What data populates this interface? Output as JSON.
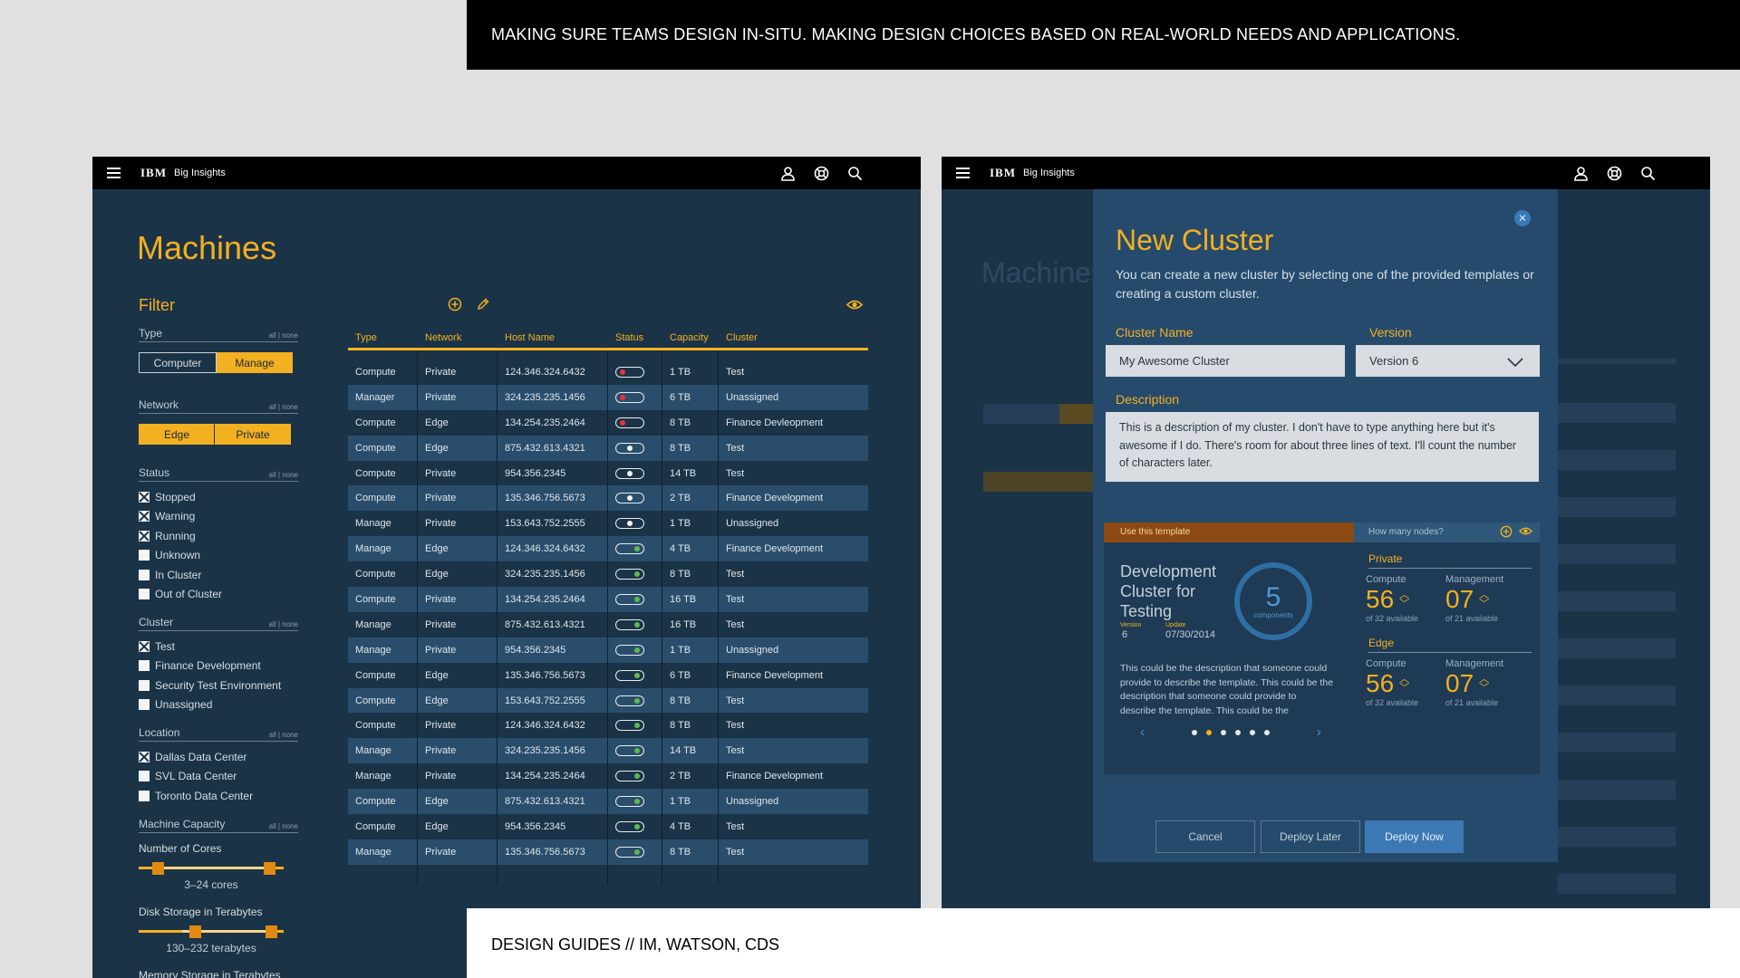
{
  "banners": {
    "top": "MAKING SURE TEAMS DESIGN IN-SITU. MAKING DESIGN CHOICES BASED ON REAL-WORLD NEEDS AND APPLICATIONS.",
    "bottom": "DESIGN GUIDES // IM, WATSON, CDS"
  },
  "app": {
    "brand": "IBM",
    "name": "Big Insights"
  },
  "machines": {
    "title": "Machines",
    "filter_title": "Filter",
    "all_none": "all | none",
    "type": {
      "label": "Type",
      "options": [
        "Computer",
        "Manage"
      ],
      "active": "Manage"
    },
    "network": {
      "label": "Network",
      "options": [
        "Edge",
        "Private"
      ]
    },
    "status": {
      "label": "Status",
      "items": [
        {
          "label": "Stopped",
          "checked": true
        },
        {
          "label": "Warning",
          "checked": true
        },
        {
          "label": "Running",
          "checked": true
        },
        {
          "label": "Unknown",
          "checked": false
        },
        {
          "label": "In Cluster",
          "checked": false
        },
        {
          "label": "Out of Cluster",
          "checked": false
        }
      ]
    },
    "cluster": {
      "label": "Cluster",
      "items": [
        {
          "label": "Test",
          "checked": true
        },
        {
          "label": "Finance Development",
          "checked": false
        },
        {
          "label": "Security Test Environment",
          "checked": false
        },
        {
          "label": "Unassigned",
          "checked": false
        }
      ]
    },
    "location": {
      "label": "Location",
      "items": [
        {
          "label": "Dallas Data Center",
          "checked": true
        },
        {
          "label": "SVL Data Center",
          "checked": false
        },
        {
          "label": "Toronto Data Center",
          "checked": false
        }
      ]
    },
    "capacity": {
      "label": "Machine Capacity",
      "cores_label": "Number of Cores",
      "cores_value": "3–24 cores",
      "disk_label": "Disk Storage in Terabytes",
      "disk_value": "130–232 terabytes",
      "memory_label": "Memory Storage in Terabytes"
    },
    "table": {
      "headers": [
        "Type",
        "Network",
        "Host Name",
        "Status",
        "Capacity",
        "Cluster"
      ],
      "rows": [
        {
          "type": "Compute",
          "network": "Private",
          "host": "124.346.324.6432",
          "status": "red",
          "capacity": "1 TB",
          "cluster": "Test"
        },
        {
          "type": "Manager",
          "network": "Private",
          "host": "324.235.235.1456",
          "status": "red",
          "capacity": "6 TB",
          "cluster": "Unassigned"
        },
        {
          "type": "Compute",
          "network": "Edge",
          "host": "134.254.235.2464",
          "status": "red",
          "capacity": "8 TB",
          "cluster": "Finance Devleopment"
        },
        {
          "type": "Compute",
          "network": "Edge",
          "host": "875.432.613.4321",
          "status": "white",
          "capacity": "8 TB",
          "cluster": "Test"
        },
        {
          "type": "Compute",
          "network": "Private",
          "host": "954.356.2345",
          "status": "white",
          "capacity": "14 TB",
          "cluster": "Test"
        },
        {
          "type": "Compute",
          "network": "Private",
          "host": "135.346.756.5673",
          "status": "white",
          "capacity": "2 TB",
          "cluster": "Finance Development"
        },
        {
          "type": "Manage",
          "network": "Private",
          "host": "153.643.752.2555",
          "status": "white",
          "capacity": "1 TB",
          "cluster": "Unassigned"
        },
        {
          "type": "Manage",
          "network": "Edge",
          "host": "124.346.324.6432",
          "status": "green",
          "capacity": "4 TB",
          "cluster": "Finance Development"
        },
        {
          "type": "Compute",
          "network": "Edge",
          "host": "324.235.235.1456",
          "status": "green",
          "capacity": "8 TB",
          "cluster": "Test"
        },
        {
          "type": "Compute",
          "network": "Private",
          "host": "134.254.235.2464",
          "status": "green",
          "capacity": "16 TB",
          "cluster": "Test"
        },
        {
          "type": "Manage",
          "network": "Private",
          "host": "875.432.613.4321",
          "status": "green",
          "capacity": "16 TB",
          "cluster": "Test"
        },
        {
          "type": "Manage",
          "network": "Private",
          "host": "954.356.2345",
          "status": "green",
          "capacity": "1 TB",
          "cluster": "Unassigned"
        },
        {
          "type": "Compute",
          "network": "Edge",
          "host": "135.346.756.5673",
          "status": "green",
          "capacity": "6 TB",
          "cluster": "Finance Development"
        },
        {
          "type": "Compute",
          "network": "Edge",
          "host": "153.643.752.2555",
          "status": "green",
          "capacity": "8 TB",
          "cluster": "Test"
        },
        {
          "type": "Compute",
          "network": "Private",
          "host": "124.346.324.6432",
          "status": "green",
          "capacity": "8 TB",
          "cluster": "Test"
        },
        {
          "type": "Manage",
          "network": "Private",
          "host": "324.235.235.1456",
          "status": "green",
          "capacity": "14 TB",
          "cluster": "Test"
        },
        {
          "type": "Manage",
          "network": "Private",
          "host": "134.254.235.2464",
          "status": "green",
          "capacity": "2 TB",
          "cluster": "Finance Development"
        },
        {
          "type": "Compute",
          "network": "Edge",
          "host": "875.432.613.4321",
          "status": "green",
          "capacity": "1 TB",
          "cluster": "Unassigned"
        },
        {
          "type": "Compute",
          "network": "Edge",
          "host": "954.356.2345",
          "status": "green",
          "capacity": "4 TB",
          "cluster": "Test"
        },
        {
          "type": "Manage",
          "network": "Private",
          "host": "135.346.756.5673",
          "status": "green",
          "capacity": "8 TB",
          "cluster": "Test"
        }
      ]
    }
  },
  "new_cluster": {
    "ghost_title": "Machines",
    "title": "New Cluster",
    "description": "You can create a new cluster by selecting one of the provided templates or creating a custom cluster.",
    "cluster_name_label": "Cluster Name",
    "cluster_name_value": "My Awesome Cluster",
    "version_label": "Version",
    "version_value": "Version 6",
    "desc_label": "Description",
    "desc_value": "This is a description of my cluster. I don't have to type anything here but it's awesome if I do. There's room for about three lines of text. I'll count the number of characters later.",
    "template": {
      "head": "Use this template",
      "name": "Development Cluster for Testing",
      "version_label": "Version",
      "version_value": "6",
      "update_label": "Update",
      "update_value": "07/30/2014",
      "components_count": "5",
      "components_label": "components",
      "description": "This could be the description that someone could provide to describe the template. This could be the description that someone could provide to describe the template. This could be the",
      "page_count": 6,
      "active_page": 1
    },
    "nodes": {
      "head": "How many nodes?",
      "groups": [
        {
          "title": "Private",
          "compute_label": "Compute",
          "compute": "56",
          "compute_avail": "of 32 available",
          "mgmt_label": "Management",
          "mgmt": "07",
          "mgmt_avail": "of 21 available"
        },
        {
          "title": "Edge",
          "compute_label": "Compute",
          "compute": "56",
          "compute_avail": "of 32 available",
          "mgmt_label": "Management",
          "mgmt": "07",
          "mgmt_avail": "of 21 available"
        }
      ]
    },
    "buttons": {
      "cancel": "Cancel",
      "later": "Deploy Later",
      "now": "Deploy Now"
    }
  },
  "colors": {
    "accent": "#f3b020",
    "panel": "#1b3347",
    "row_alt": "#2a4d6b",
    "primary": "#3c78b3"
  },
  "icons": [
    "menu-icon",
    "user-icon",
    "help-icon",
    "search-icon",
    "add-icon",
    "edit-icon",
    "eye-icon",
    "close-icon",
    "chevron-down-icon"
  ]
}
